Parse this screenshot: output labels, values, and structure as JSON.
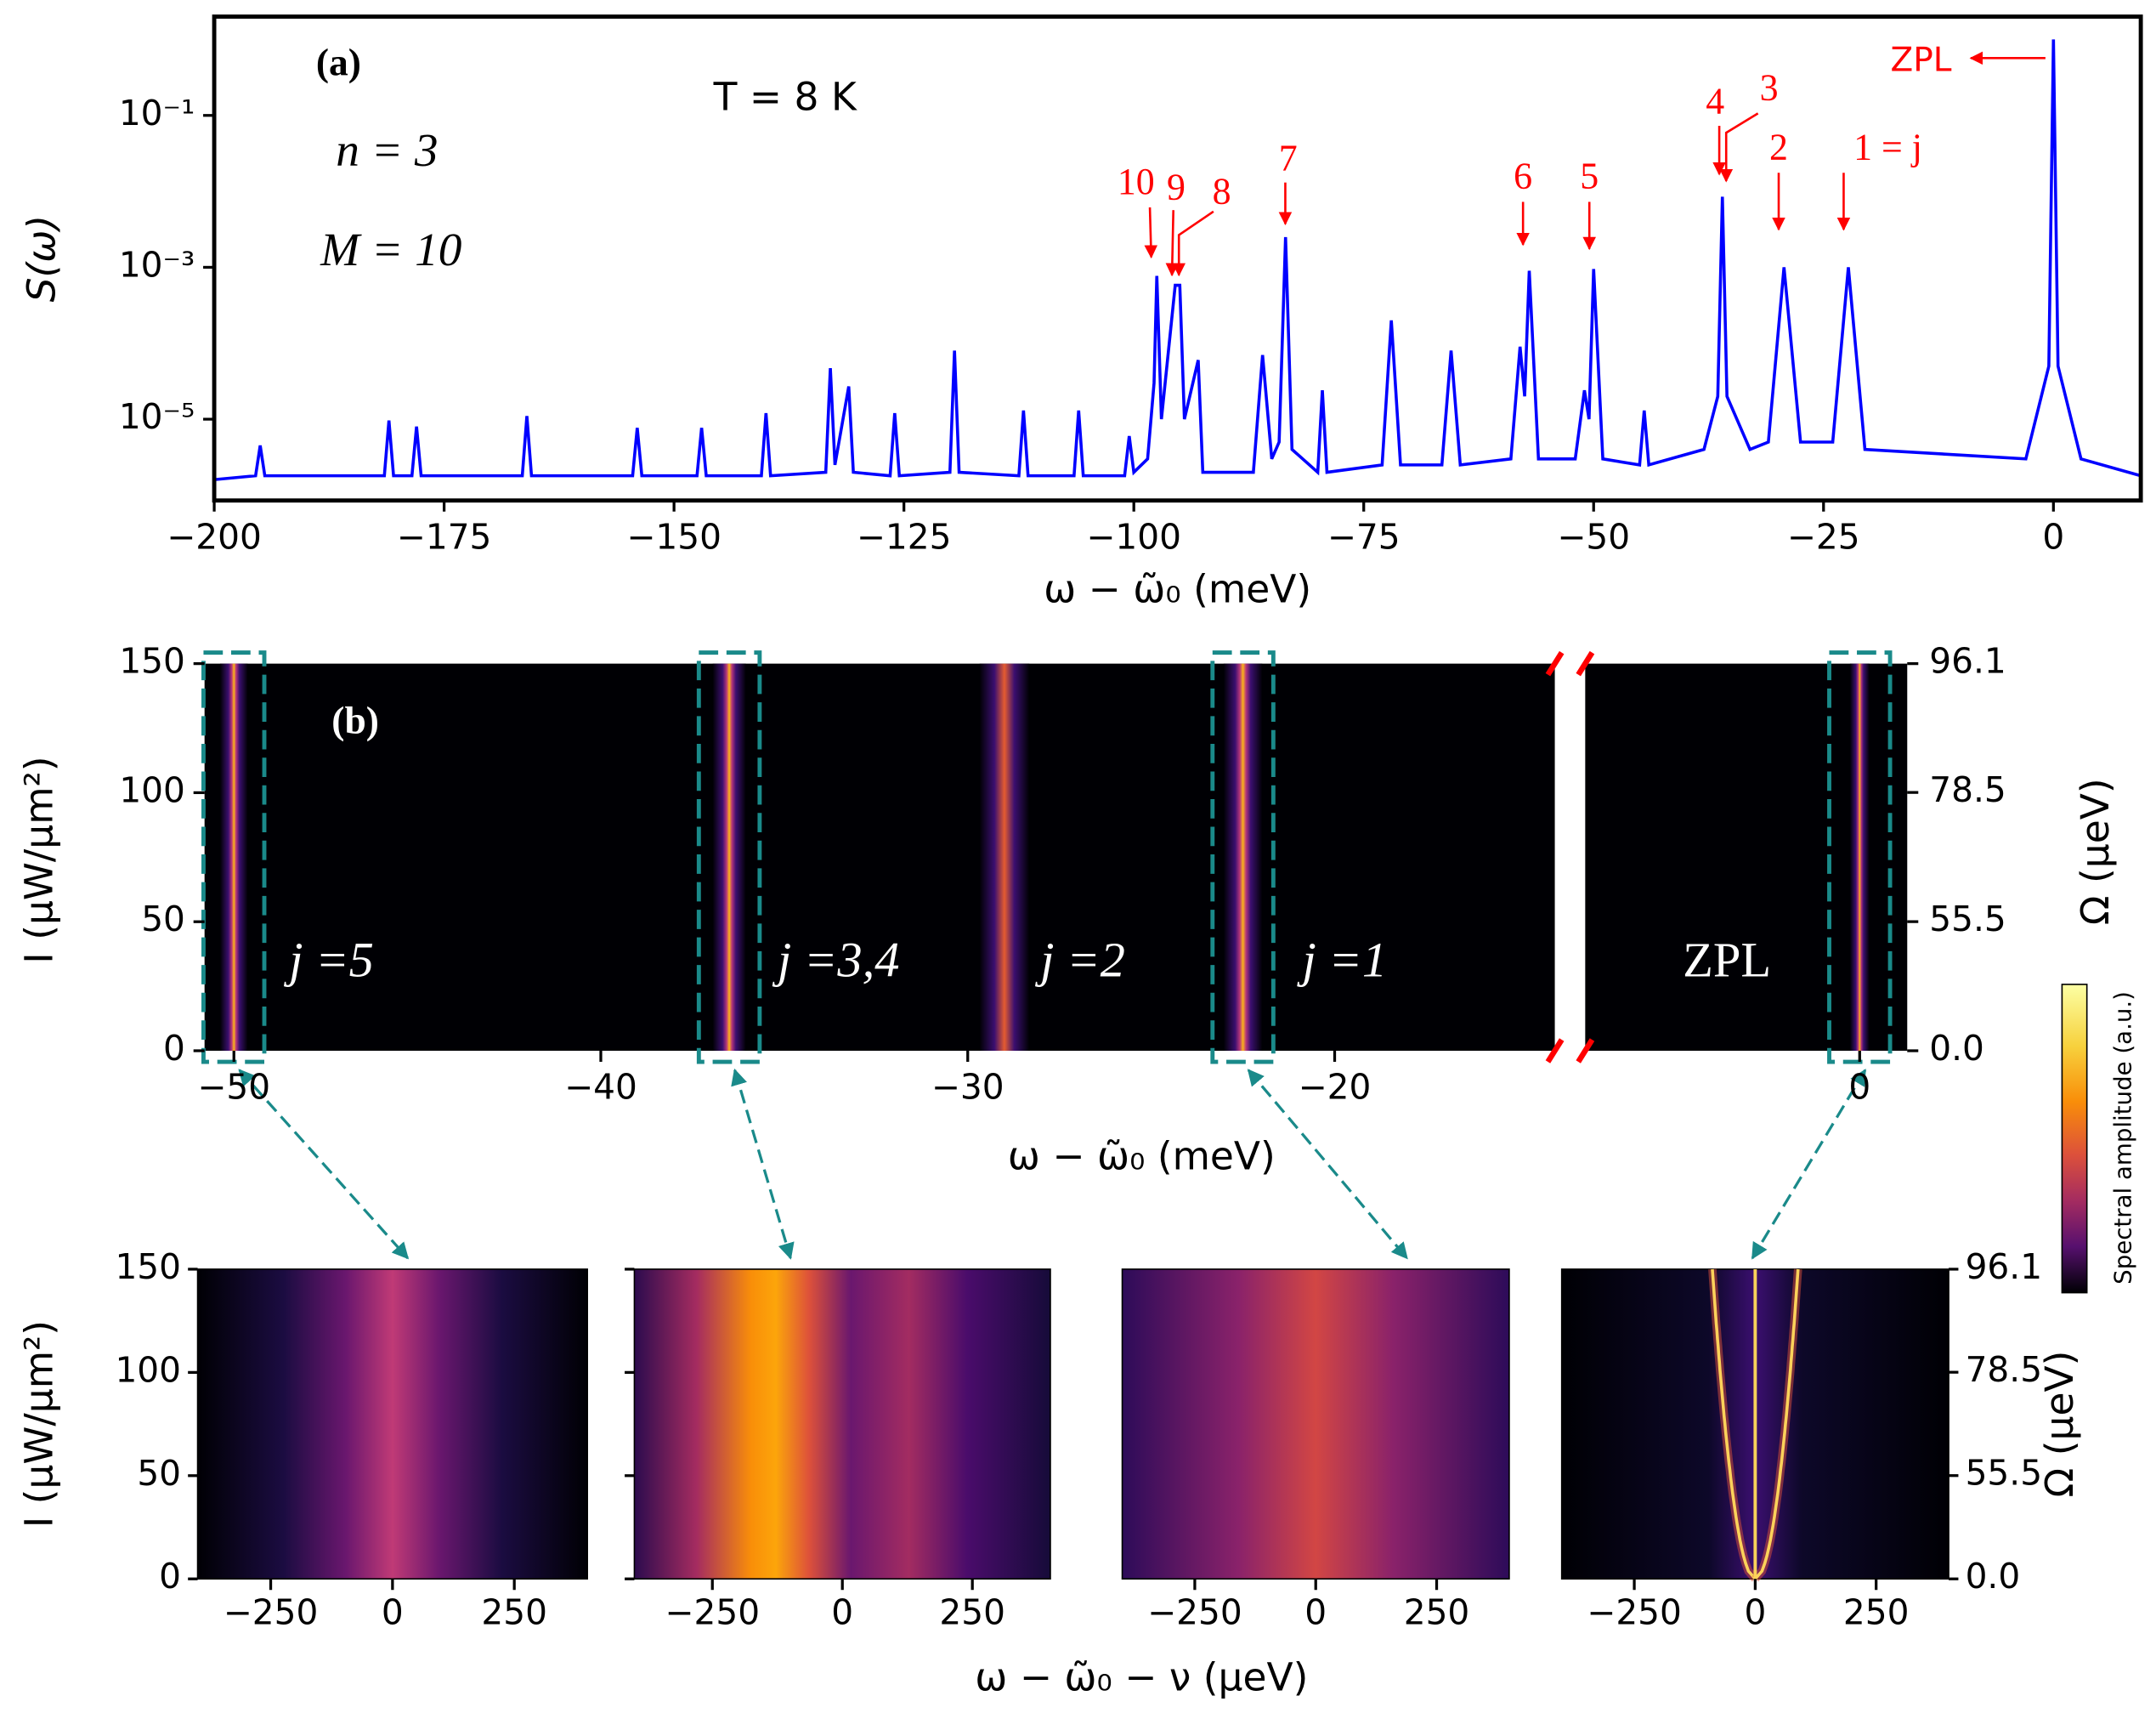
{
  "chart_data": [
    {
      "type": "line",
      "ylabel": "S(ω)",
      "xlabel": "ω − ω̃₀ (meV)",
      "annotations": [
        "(a)",
        "T = 8 K",
        "n = 3",
        "M = 10"
      ],
      "peak_labels": [
        "10",
        "9",
        "8",
        "7",
        "6",
        "5",
        "4",
        "3",
        "2",
        "1 = j",
        "ZPL"
      ],
      "yscale": "log",
      "color": "#0000ff",
      "annotation_color": "#ff0000",
      "xlim": [
        -200,
        9.5
      ],
      "ylim": [
        8.5e-07,
        2
      ],
      "xticks": [
        {
          "value": -200,
          "label": "−200"
        },
        {
          "value": -175,
          "label": "−175"
        },
        {
          "value": -150,
          "label": "−150"
        },
        {
          "value": -125,
          "label": "−125"
        },
        {
          "value": -100,
          "label": "−100"
        },
        {
          "value": -75,
          "label": "−75"
        },
        {
          "value": -50,
          "label": "−50"
        },
        {
          "value": -25,
          "label": "−25"
        },
        0
      ],
      "yticks": [
        {
          "value": 0.1,
          "label": "10⁻¹"
        },
        {
          "value": 0.001,
          "label": "10⁻³"
        },
        {
          "value": 1e-05,
          "label": "10⁻⁵"
        }
      ],
      "x": [
        -200,
        -195.5,
        -195,
        -194.5,
        -181.5,
        -181,
        -180.5,
        -178.5,
        -178,
        -177.5,
        -166.5,
        -166,
        -165.5,
        -154.5,
        -154,
        -153.5,
        -147.5,
        -147,
        -146.5,
        -140.5,
        -140,
        -139.5,
        -133.5,
        -133,
        -132.5,
        -131,
        -130.5,
        -126.5,
        -126,
        -125.5,
        -120,
        -119.5,
        -119,
        -112.5,
        -112,
        -111.5,
        -106.5,
        -106,
        -105.5,
        -101,
        -100.5,
        -100,
        -98.5,
        -97.8,
        -97.5,
        -97,
        -95.5,
        -95,
        -94.5,
        -93,
        -92.5,
        -87,
        -86,
        -85,
        -84.2,
        -83.5,
        -82.8,
        -80,
        -79.5,
        -79,
        -73,
        -72,
        -71,
        -66.5,
        -65.5,
        -64.5,
        -59,
        -58,
        -57.5,
        -57,
        -56,
        -52,
        -51,
        -50.5,
        -50,
        -49,
        -45,
        -44.5,
        -44,
        -38,
        -36.5,
        -36,
        -35.5,
        -33,
        -31,
        -29.3,
        -27.5,
        -24,
        -22.3,
        -20.5,
        -3,
        -0.5,
        0,
        0.5,
        3,
        9.5
      ],
      "values": [
        1.6e-06,
        1.8e-06,
        4.5e-06,
        1.8e-06,
        1.8e-06,
        9.6e-06,
        1.8e-06,
        1.8e-06,
        8e-06,
        1.8e-06,
        1.8e-06,
        1.1e-05,
        1.8e-06,
        1.8e-06,
        7.7e-06,
        1.8e-06,
        1.8e-06,
        7.7e-06,
        1.8e-06,
        1.8e-06,
        1.2e-05,
        1.8e-06,
        2e-06,
        4.7e-05,
        2.5e-06,
        2.7e-05,
        2e-06,
        1.8e-06,
        1.2e-05,
        1.8e-06,
        2e-06,
        8e-05,
        2e-06,
        1.8e-06,
        1.3e-05,
        1.8e-06,
        1.8e-06,
        1.3e-05,
        1.8e-06,
        1.8e-06,
        6e-06,
        2e-06,
        3e-06,
        3e-05,
        0.00077,
        1e-05,
        0.00058,
        0.00058,
        1e-05,
        6e-05,
        2e-06,
        2e-06,
        7e-05,
        3e-06,
        5e-06,
        0.0025,
        4e-06,
        2e-06,
        2.4e-05,
        2e-06,
        2.5e-06,
        0.0002,
        2.5e-06,
        2.5e-06,
        8e-05,
        2.5e-06,
        3e-06,
        9e-05,
        2e-05,
        0.0009,
        3e-06,
        3e-06,
        2.4e-05,
        1e-05,
        0.00095,
        3e-06,
        2.5e-06,
        1.3e-05,
        2.5e-06,
        4e-06,
        2e-05,
        0.0085,
        2e-05,
        4e-06,
        5e-06,
        0.001,
        5e-06,
        5e-06,
        0.001,
        4e-06,
        3e-06,
        5e-05,
        1.0,
        5e-05,
        3e-06,
        1.8e-06
      ]
    },
    {
      "type": "heatmap",
      "annotation": "(b)",
      "xlabel": "ω − ω̃₀ (meV)",
      "ylabel": "I (μW/μm²)",
      "y2label": "Ω (μeV)",
      "xlim": [
        -50.8,
        -14
      ],
      "xlim2": [
        -7.5,
        1.3
      ],
      "ylim": [
        0,
        150
      ],
      "y2lim": [
        0,
        96.1
      ],
      "y2scale": "sqrt",
      "xticks": [
        {
          "value": -50,
          "label": "−50"
        },
        {
          "value": -40,
          "label": "−40"
        },
        {
          "value": -30,
          "label": "−30"
        },
        {
          "value": -20,
          "label": "−20"
        },
        0
      ],
      "yticks": [
        0,
        50,
        100,
        150
      ],
      "y2ticks": [
        {
          "value": 0,
          "label": "0.0"
        },
        55.5,
        78.5,
        96.1
      ],
      "lines": [
        {
          "label": "j =5",
          "x": -50
        },
        {
          "label": "j =3,4",
          "x": -36.5
        },
        {
          "label": "j =2",
          "x": -29
        },
        {
          "label": "j =1",
          "x": -22.5
        },
        {
          "label": "ZPL",
          "x": 0
        }
      ]
    },
    {
      "type": "heatmap",
      "xlabel": "ω − ω̃₀ − ν (μeV)",
      "ylabel": "I (μW/μm²)",
      "y2label": "Ω (μeV)",
      "colorbar_label": "Spectral amplitude (a.u.)",
      "xlim": [
        -400,
        400
      ],
      "ylim": [
        0,
        150
      ],
      "y2lim": [
        0,
        96.1
      ],
      "y2scale": "sqrt",
      "xticks": [
        {
          "value": -250,
          "label": "−250"
        },
        0,
        250
      ],
      "yticks": [
        0,
        50,
        100,
        150
      ],
      "y2ticks": [
        {
          "value": 0,
          "label": "0.0"
        },
        55.5,
        78.5,
        96.1
      ]
    }
  ]
}
